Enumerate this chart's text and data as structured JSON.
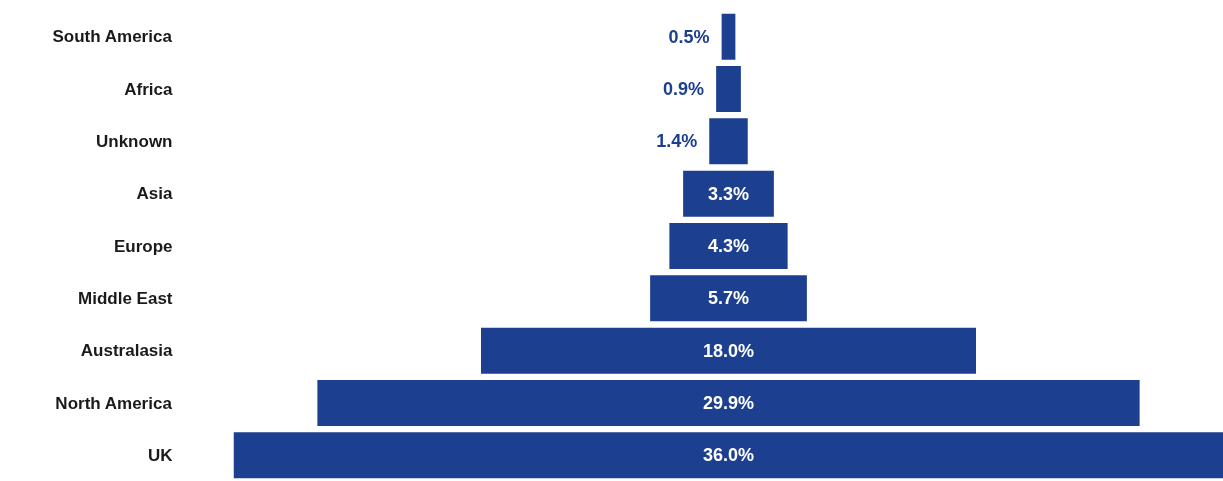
{
  "chart_data": {
    "type": "other",
    "categories": [
      "South America",
      "Africa",
      "Unknown",
      "Asia",
      "Europe",
      "Middle East",
      "Australasia",
      "North America",
      "UK"
    ],
    "values": [
      0.5,
      0.9,
      1.4,
      3.3,
      4.3,
      5.7,
      18.0,
      29.9,
      36.0
    ],
    "value_labels": [
      "0.5%",
      "0.9%",
      "1.4%",
      "3.3%",
      "4.3%",
      "5.7%",
      "18.0%",
      "29.9%",
      "36.0%"
    ],
    "color": "#1d3f8f"
  }
}
